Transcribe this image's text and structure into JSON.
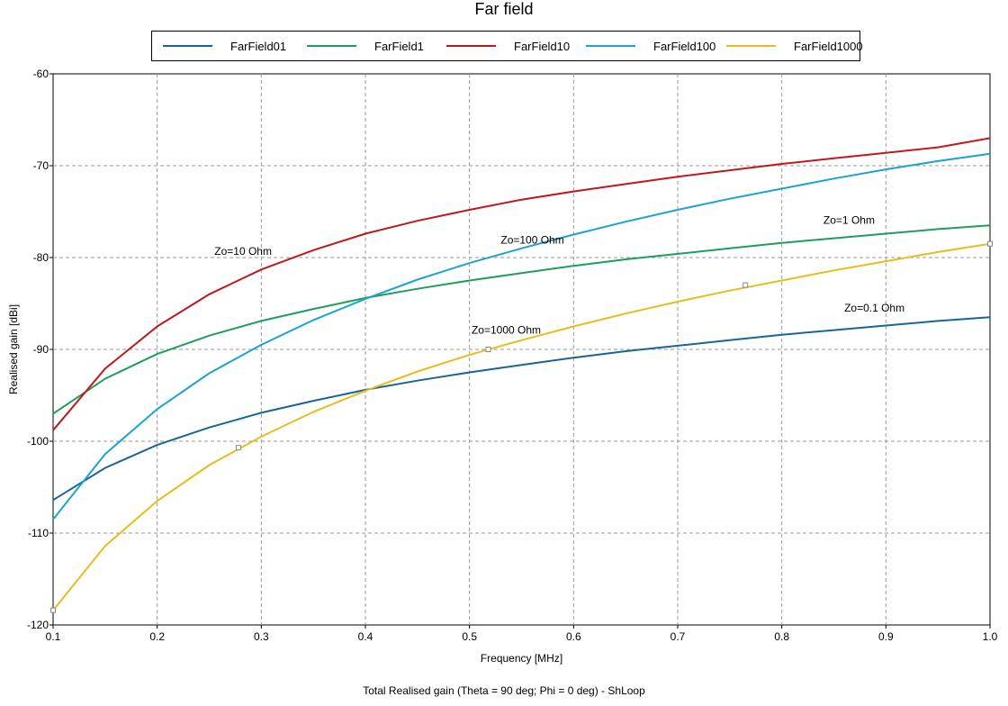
{
  "chart_data": {
    "type": "line",
    "title": "Far field",
    "xlabel": "Frequency [MHz]",
    "ylabel": "Realised gain [dBi]",
    "footer": "Total Realised gain (Theta = 90 deg; Phi = 0 deg) - ShLoop",
    "xlim": [
      0.1,
      1.0
    ],
    "ylim": [
      -120,
      -60
    ],
    "xticks": [
      "0.1",
      "0.2",
      "0.3",
      "0.4",
      "0.5",
      "0.6",
      "0.7",
      "0.8",
      "0.9",
      "1.0"
    ],
    "yticks": [
      "-60",
      "-70",
      "-80",
      "-90",
      "-100",
      "-110",
      "-120"
    ],
    "grid": true,
    "legend_position": "top",
    "x": [
      0.1,
      0.15,
      0.2,
      0.25,
      0.3,
      0.35,
      0.4,
      0.45,
      0.5,
      0.55,
      0.6,
      0.65,
      0.7,
      0.75,
      0.8,
      0.85,
      0.9,
      0.95,
      1.0
    ],
    "series": [
      {
        "name": "FarField01",
        "color": "#1a6496",
        "values": [
          -106.4,
          -102.9,
          -100.4,
          -98.5,
          -96.9,
          -95.6,
          -94.4,
          -93.4,
          -92.5,
          -91.7,
          -90.9,
          -90.2,
          -89.6,
          -89.0,
          -88.4,
          -87.9,
          -87.4,
          -86.9,
          -86.5
        ]
      },
      {
        "name": "FarField1",
        "color": "#1e9e5a",
        "values": [
          -97.0,
          -93.2,
          -90.5,
          -88.5,
          -86.9,
          -85.6,
          -84.4,
          -83.4,
          -82.5,
          -81.7,
          -80.9,
          -80.2,
          -79.6,
          -79.0,
          -78.4,
          -77.9,
          -77.4,
          -76.9,
          -76.5
        ]
      },
      {
        "name": "FarField10",
        "color": "#c0181c",
        "values": [
          -98.8,
          -92.1,
          -87.5,
          -84.0,
          -81.3,
          -79.2,
          -77.4,
          -76.0,
          -74.8,
          -73.7,
          -72.8,
          -72.0,
          -71.2,
          -70.5,
          -69.8,
          -69.2,
          -68.6,
          -68.0,
          -67.0
        ]
      },
      {
        "name": "FarField100",
        "color": "#1aa4cf",
        "values": [
          -108.5,
          -101.4,
          -96.5,
          -92.6,
          -89.5,
          -86.8,
          -84.5,
          -82.4,
          -80.6,
          -79.0,
          -77.5,
          -76.1,
          -74.8,
          -73.6,
          -72.5,
          -71.4,
          -70.4,
          -69.5,
          -68.7
        ]
      },
      {
        "name": "FarField1000",
        "color": "#e8bc1c",
        "values": [
          -118.4,
          -111.4,
          -106.5,
          -102.6,
          -99.5,
          -96.8,
          -94.5,
          -92.4,
          -90.6,
          -89.0,
          -87.5,
          -86.1,
          -84.8,
          -83.6,
          -82.5,
          -81.4,
          -80.4,
          -79.4,
          -78.5
        ]
      }
    ],
    "markers": {
      "series": "FarField1000",
      "color": "#888888",
      "points": [
        [
          0.1,
          -118.4
        ],
        [
          0.278,
          -100.7
        ],
        [
          0.518,
          -90.0
        ],
        [
          0.765,
          -83.0
        ],
        [
          1.0,
          -78.5
        ]
      ]
    },
    "annotations": [
      {
        "text": "Zo=10 Ohm",
        "x": 0.255,
        "y": -79.7
      },
      {
        "text": "Zo=100 Ohm",
        "x": 0.53,
        "y": -78.5
      },
      {
        "text": "Zo=1 Ohm",
        "x": 0.84,
        "y": -76.3
      },
      {
        "text": "Zo=0.1 Ohm",
        "x": 0.86,
        "y": -85.9
      },
      {
        "text": "Zo=1000 Ohm",
        "x": 0.502,
        "y": -88.3
      }
    ]
  }
}
